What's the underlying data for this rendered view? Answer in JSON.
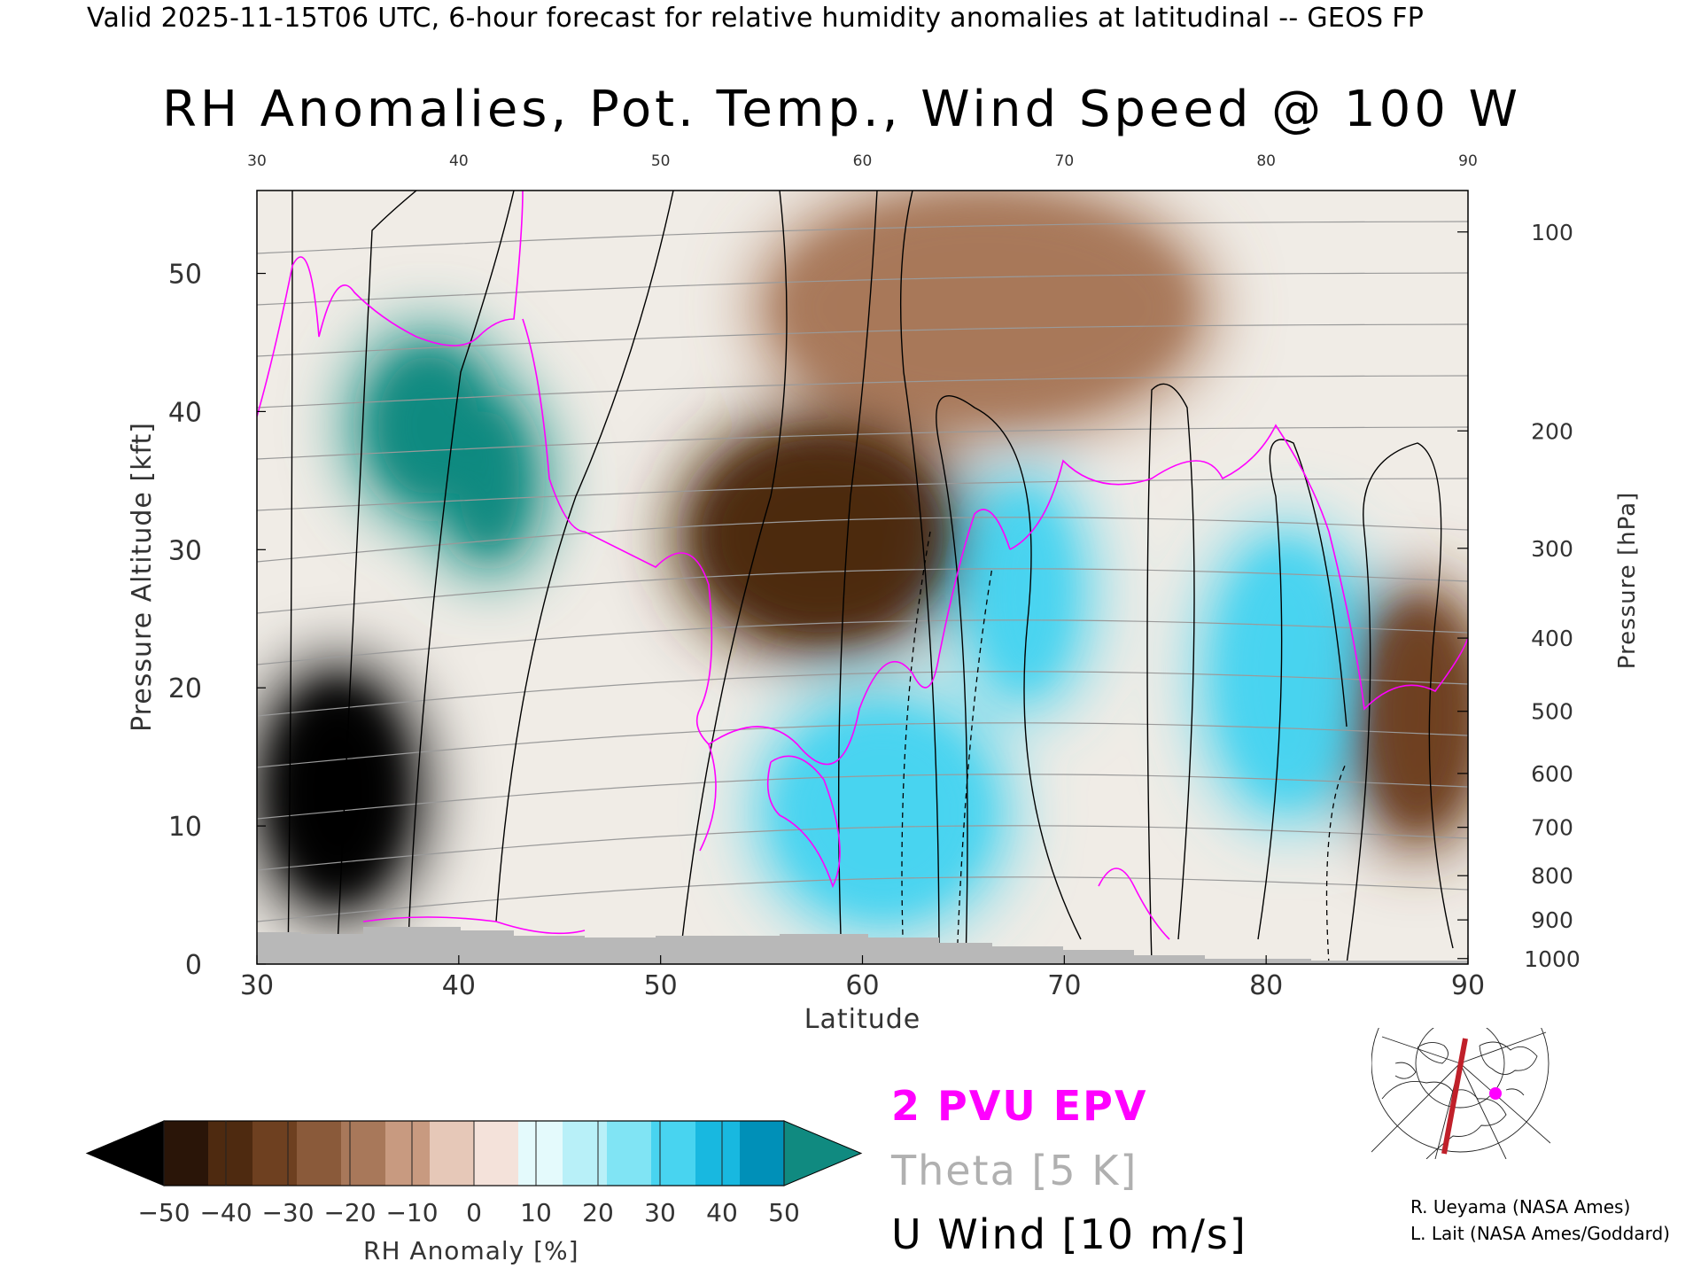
{
  "header": "Valid 2025-11-15T06 UTC, 6-hour forecast for relative humidity anomalies at latitudinal -- GEOS FP",
  "title": "RH Anomalies, Pot. Temp., Wind Speed @ 100 W",
  "legend": {
    "epv": "2 PVU EPV",
    "theta": "Theta [5 K]",
    "wind": "U Wind [10 m/s]"
  },
  "colorbar": {
    "label": "RH Anomaly [%]",
    "ticks": [
      "-50",
      "-40",
      "-30",
      "-20",
      "-10",
      "0",
      "10",
      "20",
      "30",
      "40",
      "50"
    ],
    "colors": [
      "#2a1508",
      "#4e2a10",
      "#6e4020",
      "#8a5a3a",
      "#a8785a",
      "#c89a80",
      "#e6c8b8",
      "#f4e2da",
      "#e4fafc",
      "#b8f0f8",
      "#80e4f4",
      "#48d4f0",
      "#18b8e0",
      "#0090b8"
    ],
    "under_color": "#000000",
    "over_color": "#108a80",
    "neutral_color": "#f0ece6"
  },
  "credits": [
    "R. Ueyama (NASA Ames)",
    "L. Lait (NASA Ames/Goddard)"
  ],
  "chart_data": {
    "type": "heatmap",
    "xlabel": "Latitude",
    "ylabel": "Pressure Altitude [kft]",
    "y2label": "Pressure [hPa]",
    "xlim": [
      30,
      90
    ],
    "ylim": [
      0,
      56
    ],
    "x_ticks": [
      30,
      40,
      50,
      60,
      70,
      80,
      90
    ],
    "y_ticks": [
      0,
      10,
      20,
      30,
      40,
      50
    ],
    "pressure_ticks": [
      {
        "label": "100",
        "kft": 53.0
      },
      {
        "label": "200",
        "kft": 38.6
      },
      {
        "label": "300",
        "kft": 30.1
      },
      {
        "label": "400",
        "kft": 23.6
      },
      {
        "label": "500",
        "kft": 18.3
      },
      {
        "label": "600",
        "kft": 13.8
      },
      {
        "label": "700",
        "kft": 9.9
      },
      {
        "label": "800",
        "kft": 6.4
      },
      {
        "label": "900",
        "kft": 3.2
      },
      {
        "label": "1000",
        "kft": 0.4
      }
    ],
    "rh_anomaly_regions": [
      {
        "lat": [
          31,
          37
        ],
        "kft": [
          5,
          20
        ],
        "value": -55
      },
      {
        "lat": [
          36,
          41
        ],
        "kft": [
          34,
          44
        ],
        "value": 55
      },
      {
        "lat": [
          40,
          43
        ],
        "kft": [
          30,
          40
        ],
        "value": 55
      },
      {
        "lat": [
          52,
          64
        ],
        "kft": [
          24,
          38
        ],
        "value": -40
      },
      {
        "lat": [
          56,
          76
        ],
        "kft": [
          40,
          55
        ],
        "value": -15
      },
      {
        "lat": [
          56,
          66
        ],
        "kft": [
          4,
          18
        ],
        "value": 30
      },
      {
        "lat": [
          78,
          84
        ],
        "kft": [
          12,
          30
        ],
        "value": 35
      },
      {
        "lat": [
          66,
          70
        ],
        "kft": [
          20,
          34
        ],
        "value": 30
      },
      {
        "lat": [
          85,
          90
        ],
        "kft": [
          10,
          26
        ],
        "value": -30
      }
    ],
    "theta_contours_K": [
      290,
      300,
      310,
      320,
      330,
      340,
      350,
      360,
      370,
      380,
      390,
      400,
      410,
      420
    ],
    "u_wind_contours_ms": [
      -10,
      0,
      10,
      20,
      30,
      40,
      50
    ],
    "epv_contour_pvu": 2,
    "grid": false
  }
}
